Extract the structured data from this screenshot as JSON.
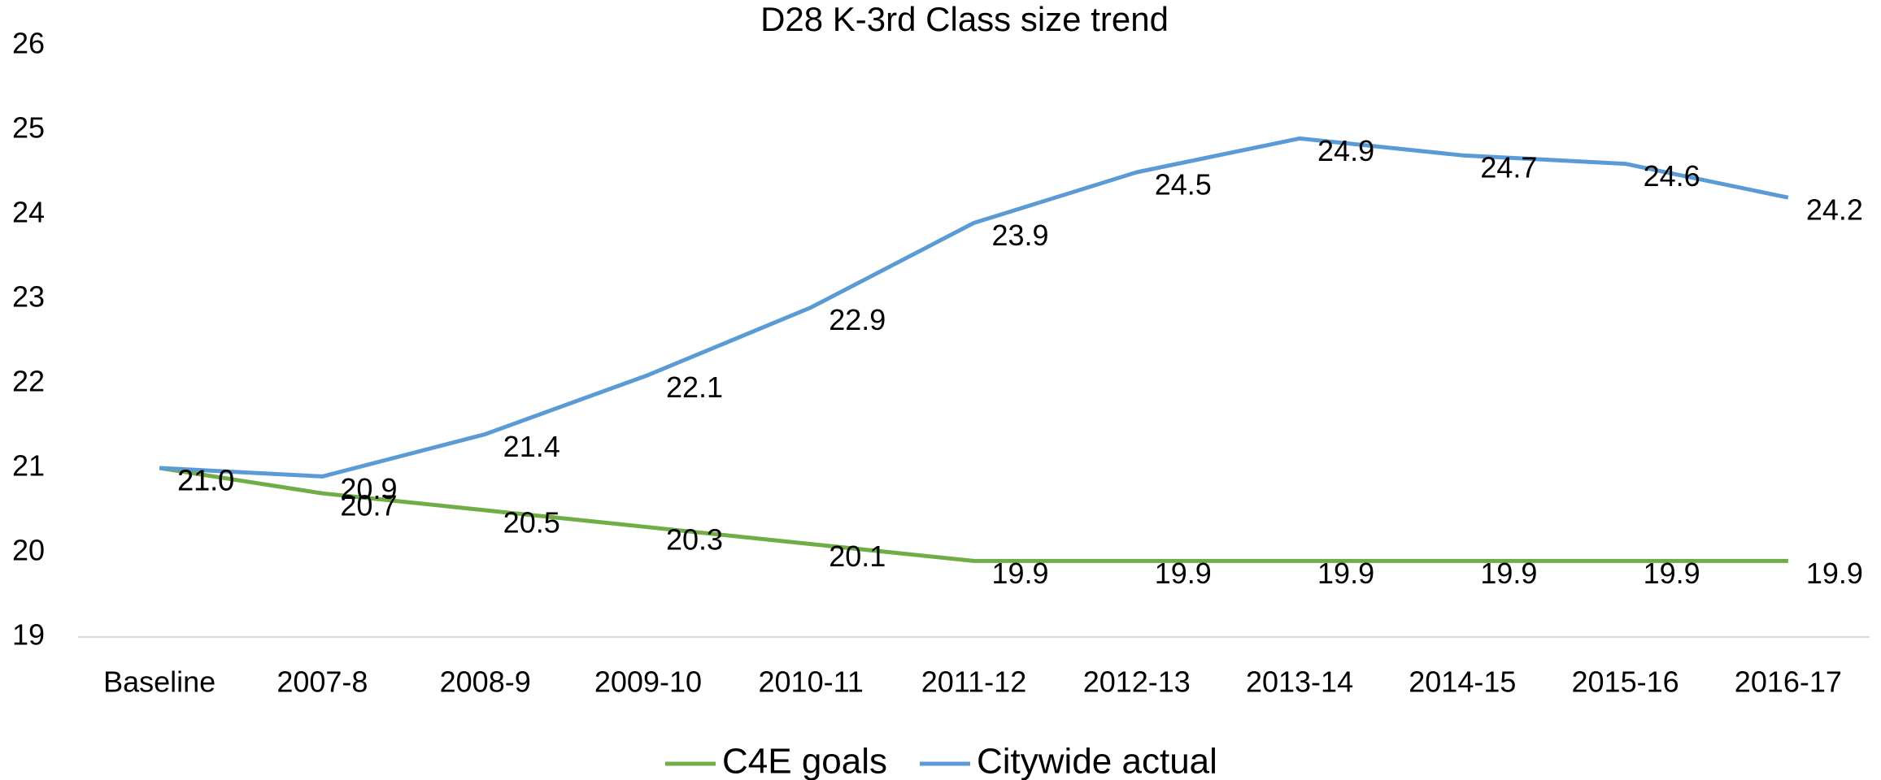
{
  "chart_data": {
    "type": "line",
    "title": "D28 K-3rd Class size trend",
    "categories": [
      "Baseline",
      "2007-8",
      "2008-9",
      "2009-10",
      "2010-11",
      "2011-12",
      "2012-13",
      "2013-14",
      "2014-15",
      "2015-16",
      "2016-17"
    ],
    "series": [
      {
        "name": "C4E goals",
        "color": "#70ad47",
        "values": [
          21.0,
          20.7,
          20.5,
          20.3,
          20.1,
          19.9,
          19.9,
          19.9,
          19.9,
          19.9,
          19.9
        ],
        "value_labels": [
          "21.0",
          "20.7",
          "20.5",
          "20.3",
          "20.1",
          "19.9",
          "19.9",
          "19.9",
          "19.9",
          "19.9",
          "19.9"
        ]
      },
      {
        "name": "Citywide actual",
        "color": "#5b9bd5",
        "values": [
          21.0,
          20.9,
          21.4,
          22.1,
          22.9,
          23.9,
          24.5,
          24.9,
          24.7,
          24.6,
          24.2
        ],
        "value_labels": [
          "21.0",
          "20.9",
          "21.4",
          "22.1",
          "22.9",
          "23.9",
          "24.5",
          "24.9",
          "24.7",
          "24.6",
          "24.2"
        ]
      }
    ],
    "ylim": [
      19,
      26
    ],
    "yticks": [
      19,
      20,
      21,
      22,
      23,
      24,
      25,
      26
    ],
    "grid": false,
    "legend": "bottom"
  }
}
